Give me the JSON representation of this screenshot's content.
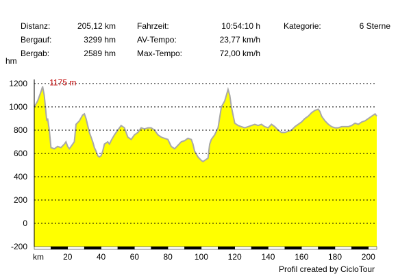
{
  "stats": {
    "distance_label": "Distanz:",
    "distance_value": "205,12 km",
    "ascent_label": "Bergauf:",
    "ascent_value": "3299 hm",
    "descent_label": "Bergab:",
    "descent_value": "2589 hm",
    "time_label": "Fahrzeit:",
    "time_value": "10:54:10 h",
    "avg_label": "AV-Tempo:",
    "avg_value": "23,77 km/h",
    "max_label": "Max-Tempo:",
    "max_value": "72,00 km/h",
    "category_label": "Kategorie:",
    "category_value": "6 Sterne"
  },
  "credit": "Profil created by CicloTour",
  "chart_data": {
    "type": "area",
    "title": "",
    "xlabel": "km",
    "ylabel": "hm",
    "xlim": [
      0,
      205
    ],
    "ylim": [
      -200,
      1200
    ],
    "x_ticks": [
      20,
      40,
      60,
      80,
      100,
      120,
      140,
      160,
      180,
      200
    ],
    "y_ticks": [
      1200,
      1000,
      800,
      600,
      400,
      200,
      0,
      -200
    ],
    "grid": true,
    "fill_color": "#ffff00",
    "line_color": "#a8a8a8",
    "max_annotation": {
      "x": 5,
      "y": 1175,
      "text": "1175 m",
      "color": "#c00000"
    },
    "x": [
      0,
      2,
      4,
      5,
      6,
      7,
      7.5,
      8,
      9,
      10,
      12,
      14,
      16,
      18,
      19,
      20,
      21,
      22,
      24,
      25,
      27,
      29,
      30,
      31,
      33,
      35,
      36,
      37,
      38,
      39,
      40,
      41,
      42,
      44,
      45,
      46,
      48,
      50,
      52,
      54,
      56,
      58,
      60,
      62,
      64,
      66,
      68,
      70,
      72,
      74,
      76,
      78,
      80,
      82,
      84,
      86,
      88,
      90,
      92,
      94,
      95,
      96,
      98,
      100,
      101,
      102,
      104,
      105,
      106,
      108,
      110,
      112,
      114,
      115,
      116,
      117,
      118,
      120,
      122,
      124,
      126,
      128,
      130,
      132,
      134,
      136,
      138,
      140,
      142,
      144,
      146,
      148,
      150,
      152,
      154,
      156,
      158,
      160,
      162,
      164,
      166,
      168,
      170,
      171,
      172,
      174,
      176,
      178,
      180,
      182,
      184,
      186,
      188,
      190,
      192,
      194,
      196,
      198,
      200,
      202,
      204,
      205
    ],
    "y": [
      1000,
      1050,
      1130,
      1175,
      1100,
      950,
      880,
      900,
      800,
      650,
      640,
      660,
      650,
      680,
      700,
      660,
      640,
      660,
      700,
      850,
      880,
      930,
      940,
      900,
      780,
      700,
      650,
      620,
      580,
      570,
      580,
      620,
      680,
      700,
      680,
      710,
      760,
      800,
      840,
      820,
      740,
      720,
      760,
      780,
      820,
      810,
      820,
      820,
      800,
      760,
      740,
      730,
      720,
      660,
      640,
      670,
      700,
      710,
      730,
      720,
      680,
      620,
      570,
      540,
      530,
      540,
      560,
      680,
      720,
      760,
      820,
      1000,
      1050,
      1100,
      1150,
      1100,
      1000,
      860,
      840,
      830,
      820,
      830,
      840,
      850,
      840,
      850,
      830,
      820,
      850,
      830,
      800,
      780,
      780,
      790,
      800,
      830,
      850,
      870,
      900,
      920,
      950,
      970,
      980,
      960,
      920,
      880,
      850,
      830,
      820,
      820,
      830,
      830,
      830,
      840,
      860,
      850,
      870,
      880,
      900,
      920,
      940,
      920
    ]
  }
}
